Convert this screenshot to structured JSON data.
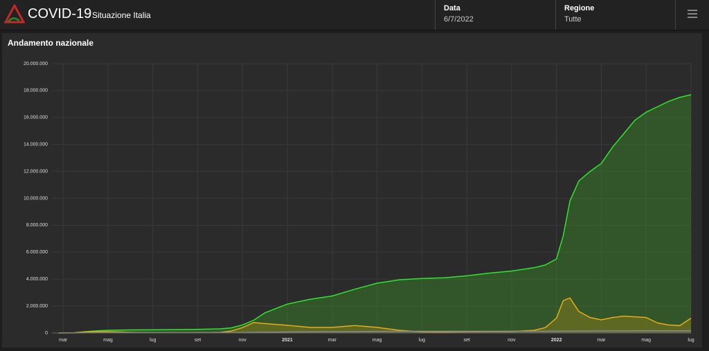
{
  "header": {
    "title": "COVID-19",
    "subtitle": "Situazione Italia",
    "filters": [
      {
        "label": "Data",
        "value": "6/7/2022"
      },
      {
        "label": "Regione",
        "value": "Tutte"
      }
    ]
  },
  "chart_data": {
    "type": "area",
    "title": "Andamento nazionale",
    "x": [
      1.8,
      2.5,
      3,
      3.5,
      4,
      5,
      6,
      7,
      8,
      9,
      9.5,
      10,
      10.5,
      11,
      12,
      13,
      14,
      15,
      16,
      17,
      18,
      19,
      20,
      21,
      22,
      23,
      23.5,
      24,
      24.3,
      24.6,
      25,
      25.5,
      26,
      26.5,
      27,
      27.5,
      28,
      28.5,
      29,
      29.5,
      30
    ],
    "xlim": [
      1.5,
      30
    ],
    "xticks": [
      {
        "value": 2,
        "label": "mar"
      },
      {
        "value": 4,
        "label": "mag"
      },
      {
        "value": 6,
        "label": "lug"
      },
      {
        "value": 8,
        "label": "set"
      },
      {
        "value": 10,
        "label": "nov"
      },
      {
        "value": 12,
        "label": "2021"
      },
      {
        "value": 14,
        "label": "mar"
      },
      {
        "value": 16,
        "label": "mag"
      },
      {
        "value": 18,
        "label": "lug"
      },
      {
        "value": 20,
        "label": "set"
      },
      {
        "value": 22,
        "label": "nov"
      },
      {
        "value": 24,
        "label": "2022"
      },
      {
        "value": 26,
        "label": "mar"
      },
      {
        "value": 28,
        "label": "mag"
      },
      {
        "value": 30,
        "label": "lug"
      }
    ],
    "ylim": [
      0,
      20000000
    ],
    "yticks": [
      0,
      {
        "value": 2000000,
        "label": "2.000.000"
      },
      {
        "value": 4000000,
        "label": "4.000.000"
      },
      {
        "value": 6000000,
        "label": "6.000.000"
      },
      {
        "value": 8000000,
        "label": "8.000.000"
      },
      {
        "value": 10000000,
        "label": "10.000.000"
      },
      {
        "value": 12000000,
        "label": "12.000.000"
      },
      {
        "value": 14000000,
        "label": "14.000.000"
      },
      {
        "value": 16000000,
        "label": "16.000.000"
      },
      {
        "value": 18000000,
        "label": "18.000.000"
      },
      {
        "value": 20000000,
        "label": "20.000.000"
      }
    ],
    "grid": true,
    "series": [
      {
        "color": "#2ee62e",
        "fill": "rgba(60,140,40,0.45)",
        "values": [
          0,
          20000,
          100000,
          160000,
          200000,
          230000,
          240000,
          250000,
          270000,
          310000,
          380000,
          600000,
          950000,
          1500000,
          2150000,
          2500000,
          2750000,
          3250000,
          3700000,
          3950000,
          4050000,
          4100000,
          4250000,
          4450000,
          4600000,
          4850000,
          5050000,
          5500000,
          7200000,
          9800000,
          11300000,
          12000000,
          12600000,
          13800000,
          14800000,
          15800000,
          16400000,
          16800000,
          17200000,
          17500000,
          17700000
        ]
      },
      {
        "color": "#e6ac1a",
        "fill": "rgba(130,120,30,0.55)",
        "values": [
          0,
          20000,
          80000,
          100000,
          100000,
          50000,
          20000,
          13000,
          20000,
          50000,
          150000,
          400000,
          780000,
          700000,
          570000,
          420000,
          420000,
          550000,
          420000,
          200000,
          80000,
          70000,
          90000,
          100000,
          110000,
          200000,
          400000,
          1100000,
          2400000,
          2600000,
          1600000,
          1150000,
          980000,
          1150000,
          1250000,
          1200000,
          1150000,
          750000,
          600000,
          550000,
          1100000
        ]
      },
      {
        "color": "#8a8a8a",
        "fill": "rgba(120,120,120,0.3)",
        "values": [
          0,
          1000,
          10000,
          25000,
          30000,
          33000,
          35000,
          35000,
          35000,
          36000,
          38000,
          40000,
          50000,
          60000,
          75000,
          90000,
          100000,
          110000,
          120000,
          126000,
          128000,
          129000,
          130000,
          131000,
          132000,
          134000,
          136000,
          138000,
          140000,
          142000,
          148000,
          153000,
          156000,
          159000,
          162000,
          164000,
          166000,
          167000,
          168000,
          169000,
          170000
        ]
      }
    ]
  }
}
